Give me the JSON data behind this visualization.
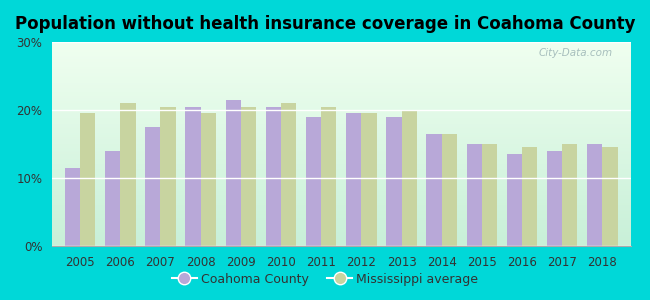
{
  "title": "Population without health insurance coverage in Coahoma County",
  "years": [
    2005,
    2006,
    2007,
    2008,
    2009,
    2010,
    2011,
    2012,
    2013,
    2014,
    2015,
    2016,
    2017,
    2018
  ],
  "coahoma": [
    11.5,
    14.0,
    17.5,
    20.5,
    21.5,
    20.5,
    19.0,
    19.5,
    19.0,
    16.5,
    15.0,
    13.5,
    14.0,
    15.0
  ],
  "mississippi": [
    19.5,
    21.0,
    20.5,
    19.5,
    20.5,
    21.0,
    20.5,
    19.5,
    20.0,
    16.5,
    15.0,
    14.5,
    15.0,
    14.5
  ],
  "coahoma_color": "#b8a8d8",
  "mississippi_color": "#c8d4a0",
  "background_outer": "#00d8d8",
  "background_inner_top": "#f0fff0",
  "background_inner_bottom": "#c8f0d8",
  "ylim": [
    0,
    30
  ],
  "yticks": [
    0,
    10,
    20,
    30
  ],
  "ytick_labels": [
    "0%",
    "10%",
    "20%",
    "30%"
  ],
  "legend_coahoma": "Coahoma County",
  "legend_mississippi": "Mississippi average",
  "title_fontsize": 12,
  "bar_width": 0.38
}
